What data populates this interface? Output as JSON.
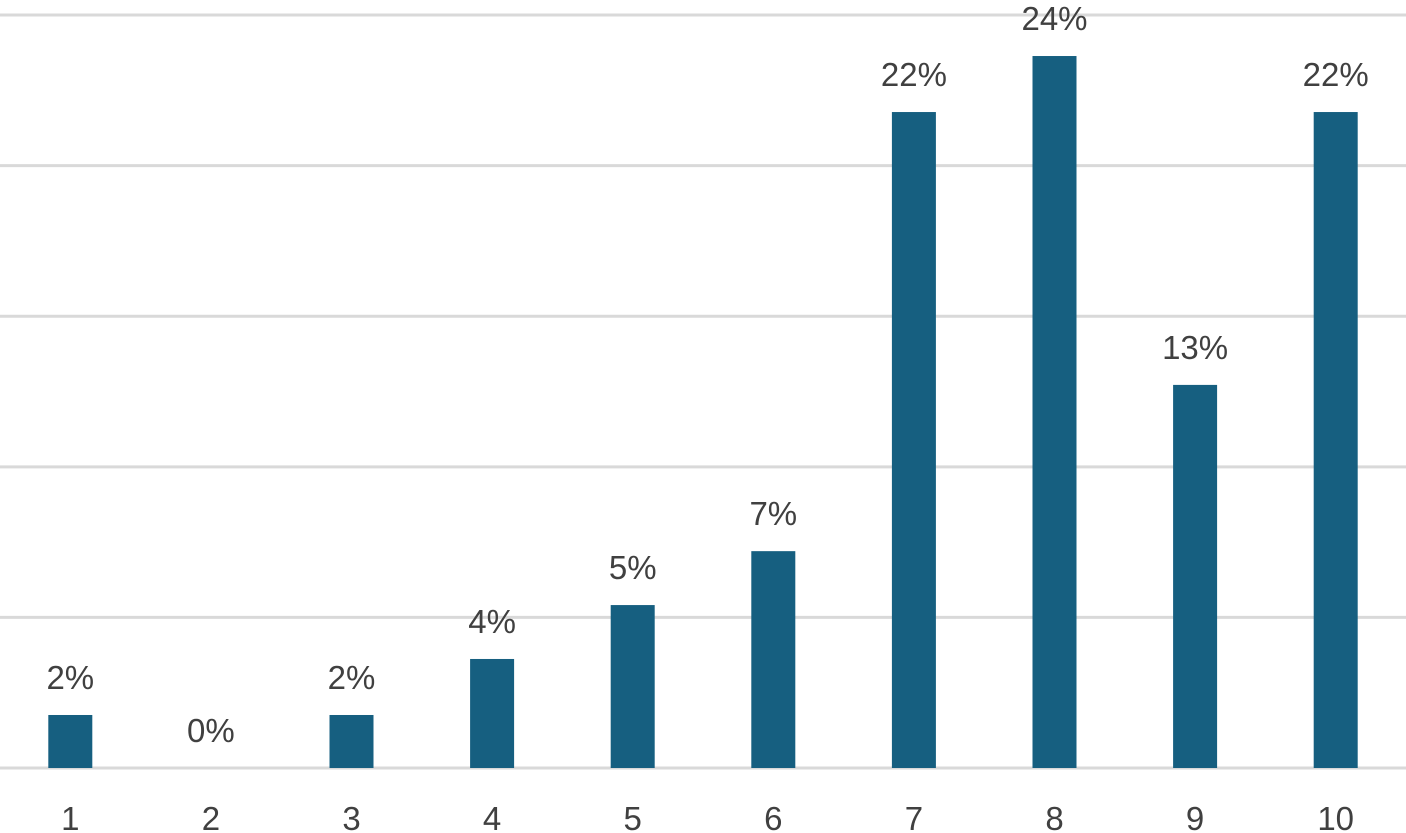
{
  "chart_data": {
    "type": "bar",
    "categories": [
      "1",
      "2",
      "3",
      "4",
      "5",
      "6",
      "7",
      "8",
      "9",
      "10"
    ],
    "values": [
      1.76,
      0,
      1.76,
      3.62,
      5.41,
      7.2,
      21.78,
      23.64,
      12.72,
      21.78
    ],
    "value_labels": [
      "2%",
      "0%",
      "2%",
      "4%",
      "5%",
      "7%",
      "22%",
      "24%",
      "13%",
      "22%"
    ],
    "color": "#165f80",
    "ylim": [
      0,
      25.5
    ],
    "yticks": [
      0,
      5,
      10,
      15,
      20,
      25
    ],
    "grid": true
  }
}
